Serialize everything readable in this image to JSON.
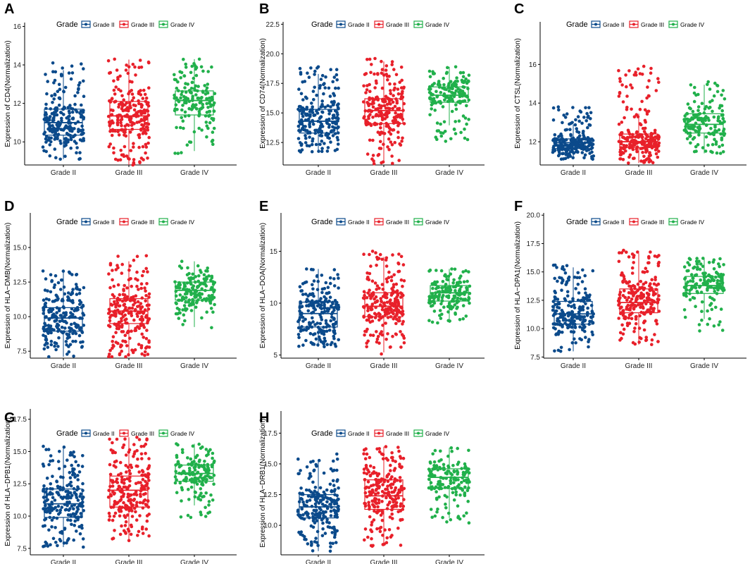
{
  "legend_title": "Grade",
  "categories": [
    "Grade II",
    "Grade III",
    "Grade IV"
  ],
  "colors": {
    "Grade II": "#0b4a8b",
    "Grade III": "#e8202a",
    "Grade IV": "#21b04b"
  },
  "chart_data": [
    {
      "panel": "A",
      "type": "box",
      "ylabel": "Expression of CD4(Normalization)",
      "ylim": [
        8.8,
        16.2
      ],
      "yticks": [
        10,
        12,
        14,
        16
      ],
      "tick_labels": [
        "10",
        "12",
        "14",
        "16"
      ],
      "series": [
        {
          "name": "Grade II",
          "n": 220,
          "min": 9.1,
          "q1": 10.35,
          "median": 11.0,
          "q3": 11.7,
          "max": 14.1
        },
        {
          "name": "Grade III",
          "n": 230,
          "min": 8.8,
          "q1": 10.65,
          "median": 11.35,
          "q3": 12.1,
          "max": 14.3
        },
        {
          "name": "Grade IV",
          "n": 160,
          "min": 9.4,
          "q1": 11.4,
          "median": 12.15,
          "q3": 12.65,
          "max": 14.3
        }
      ]
    },
    {
      "panel": "B",
      "type": "box",
      "ylabel": "Expression of CD74(Normalization)",
      "ylim": [
        10.6,
        22.7
      ],
      "yticks": [
        12.5,
        15.0,
        17.5,
        20.0,
        22.5
      ],
      "tick_labels": [
        "12.5",
        "15.0",
        "17.5",
        "20.0",
        "22.5"
      ],
      "series": [
        {
          "name": "Grade II",
          "n": 220,
          "min": 11.7,
          "q1": 13.3,
          "median": 14.3,
          "q3": 15.3,
          "max": 18.9
        },
        {
          "name": "Grade III",
          "n": 230,
          "min": 10.7,
          "q1": 14.1,
          "median": 15.2,
          "q3": 16.2,
          "max": 19.6
        },
        {
          "name": "Grade IV",
          "n": 160,
          "min": 12.6,
          "q1": 15.9,
          "median": 16.5,
          "q3": 17.2,
          "max": 18.9
        }
      ]
    },
    {
      "panel": "C",
      "type": "box",
      "ylabel": "Expression of CTSL(Normalization)",
      "ylim": [
        10.8,
        18.2
      ],
      "yticks": [
        12,
        14,
        16
      ],
      "tick_labels": [
        "12",
        "14",
        "16"
      ],
      "series": [
        {
          "name": "Grade II",
          "n": 220,
          "min": 11.1,
          "q1": 11.65,
          "median": 11.95,
          "q3": 12.15,
          "max": 13.8
        },
        {
          "name": "Grade III",
          "n": 230,
          "min": 10.9,
          "q1": 11.7,
          "median": 12.0,
          "q3": 12.4,
          "max": 15.9
        },
        {
          "name": "Grade IV",
          "n": 160,
          "min": 11.4,
          "q1": 12.45,
          "median": 12.9,
          "q3": 13.45,
          "max": 15.1
        }
      ]
    },
    {
      "panel": "D",
      "type": "box",
      "ylabel": "Expression of HLA−DMB(Normalization)",
      "ylim": [
        7.0,
        17.5
      ],
      "yticks": [
        7.5,
        10.0,
        12.5,
        15.0
      ],
      "tick_labels": [
        "7.5",
        "10.0",
        "12.5",
        "15.0"
      ],
      "series": [
        {
          "name": "Grade II",
          "n": 220,
          "min": 7.1,
          "q1": 8.95,
          "median": 9.9,
          "q3": 10.65,
          "max": 13.3
        },
        {
          "name": "Grade III",
          "n": 230,
          "min": 7.1,
          "q1": 9.5,
          "median": 10.4,
          "q3": 11.3,
          "max": 14.4
        },
        {
          "name": "Grade IV",
          "n": 160,
          "min": 9.2,
          "q1": 11.2,
          "median": 11.9,
          "q3": 12.5,
          "max": 14.0
        }
      ]
    },
    {
      "panel": "E",
      "type": "box",
      "ylabel": "Expression of HLA−DOA(Normalization)",
      "ylim": [
        4.7,
        18.7
      ],
      "yticks": [
        5,
        10,
        15
      ],
      "tick_labels": [
        "5",
        "10",
        "15"
      ],
      "series": [
        {
          "name": "Grade II",
          "n": 220,
          "min": 5.8,
          "q1": 7.7,
          "median": 9.0,
          "q3": 10.1,
          "max": 13.3
        },
        {
          "name": "Grade III",
          "n": 230,
          "min": 5.1,
          "q1": 8.7,
          "median": 9.7,
          "q3": 11.0,
          "max": 15.0
        },
        {
          "name": "Grade IV",
          "n": 160,
          "min": 8.1,
          "q1": 10.2,
          "median": 11.0,
          "q3": 11.7,
          "max": 13.3
        }
      ]
    },
    {
      "panel": "F",
      "type": "box",
      "ylabel": "Expression of HLA−DPA1(Normalization)",
      "ylim": [
        7.4,
        20.2
      ],
      "yticks": [
        7.5,
        10.0,
        12.5,
        15.0,
        17.5,
        20.0
      ],
      "tick_labels": [
        "7.5",
        "10.0",
        "12.5",
        "15.0",
        "17.5",
        "20.0"
      ],
      "series": [
        {
          "name": "Grade II",
          "n": 220,
          "min": 8.0,
          "q1": 10.4,
          "median": 11.3,
          "q3": 12.4,
          "max": 15.6
        },
        {
          "name": "Grade III",
          "n": 230,
          "min": 8.6,
          "q1": 11.4,
          "median": 12.3,
          "q3": 13.5,
          "max": 16.9
        },
        {
          "name": "Grade IV",
          "n": 160,
          "min": 9.8,
          "q1": 13.1,
          "median": 13.8,
          "q3": 14.6,
          "max": 16.2
        }
      ]
    },
    {
      "panel": "G",
      "type": "box",
      "ylabel": "Expression of HLA−DPB1(Normalization)",
      "ylim": [
        7.0,
        18.3
      ],
      "yticks": [
        7.5,
        10.0,
        12.5,
        15.0,
        17.5
      ],
      "tick_labels": [
        "7.5",
        "10.0",
        "12.5",
        "15.0",
        "17.5"
      ],
      "series": [
        {
          "name": "Grade II",
          "n": 220,
          "min": 7.6,
          "q1": 9.9,
          "median": 10.95,
          "q3": 12.1,
          "max": 15.4
        },
        {
          "name": "Grade III",
          "n": 230,
          "min": 8.1,
          "q1": 10.7,
          "median": 12.0,
          "q3": 13.1,
          "max": 16.1
        },
        {
          "name": "Grade IV",
          "n": 160,
          "min": 9.9,
          "q1": 12.7,
          "median": 13.3,
          "q3": 13.95,
          "max": 15.6
        }
      ]
    },
    {
      "panel": "H",
      "type": "box",
      "ylabel": "Expression of HLA−DRB1(Normalization)",
      "ylim": [
        7.6,
        19.3
      ],
      "yticks": [
        10.0,
        12.5,
        15.0,
        17.5
      ],
      "tick_labels": [
        "10.0",
        "12.5",
        "15.0",
        "17.5"
      ],
      "series": [
        {
          "name": "Grade II",
          "n": 220,
          "min": 7.9,
          "q1": 10.6,
          "median": 11.5,
          "q3": 12.5,
          "max": 15.8
        },
        {
          "name": "Grade III",
          "n": 230,
          "min": 8.3,
          "q1": 11.3,
          "median": 12.4,
          "q3": 13.7,
          "max": 16.4
        },
        {
          "name": "Grade IV",
          "n": 160,
          "min": 10.2,
          "q1": 13.0,
          "median": 13.9,
          "q3": 14.6,
          "max": 16.3
        }
      ]
    }
  ]
}
